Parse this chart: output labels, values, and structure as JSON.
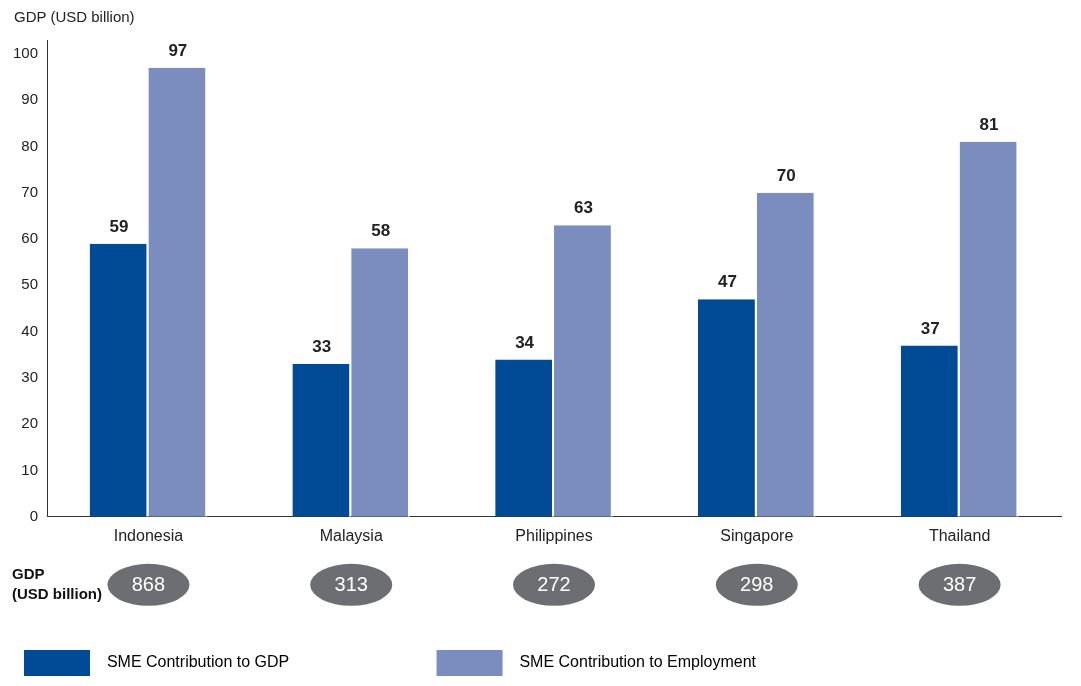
{
  "chart_data": {
    "type": "bar",
    "ylabel": "GDP (USD billion)",
    "categories": [
      "Indonesia",
      "Malaysia",
      "Philippines",
      "Singapore",
      "Thailand"
    ],
    "series": [
      {
        "name": "SME Contribution to GDP",
        "color": "#004a96",
        "values": [
          59,
          33,
          34,
          47,
          37
        ]
      },
      {
        "name": "SME Contribution to Employment",
        "color": "#7b8dbf",
        "values": [
          97,
          58,
          63,
          70,
          81
        ]
      }
    ],
    "ylim": [
      0,
      103
    ],
    "yticks": [
      0,
      10,
      20,
      30,
      40,
      50,
      60,
      70,
      80,
      90,
      100
    ],
    "grid": false,
    "legend": "bottom",
    "data_labels": true,
    "annotations": [
      "GDP (USD billion)",
      "868",
      "313",
      "272",
      "298",
      "387"
    ]
  }
}
